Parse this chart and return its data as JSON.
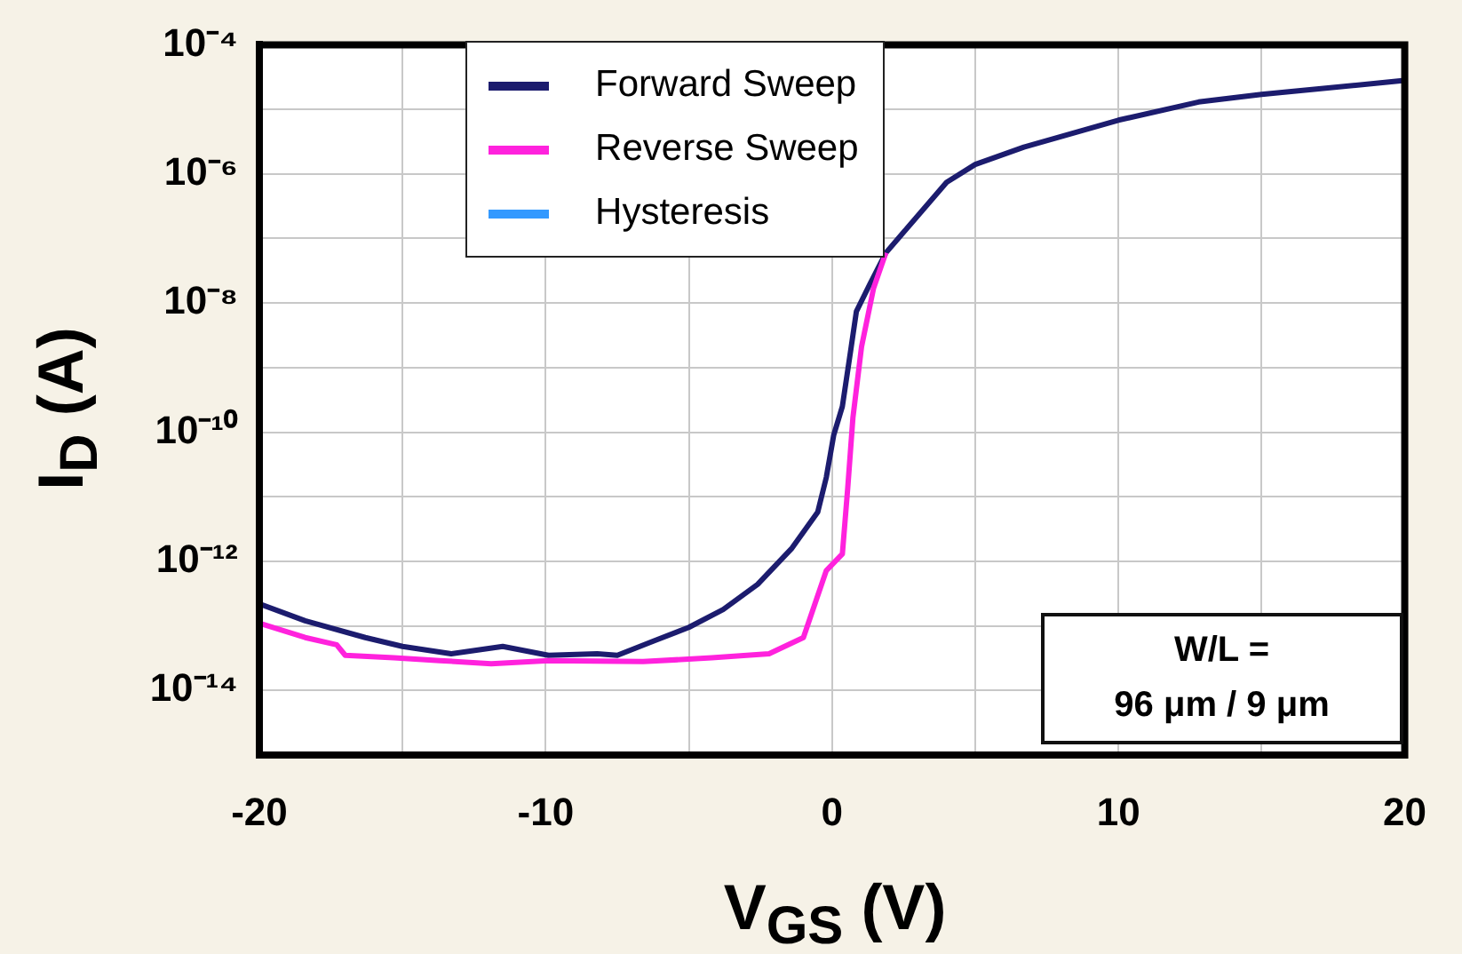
{
  "chart_data": {
    "type": "line",
    "xlabel": "V$_{GS}$ (V)",
    "ylabel": "I$_{D}$ (A)",
    "log": "y",
    "grid": true,
    "legend": "top",
    "marker": "none",
    "line_style": "solid",
    "xlim": [
      -20,
      20
    ],
    "xticks": [
      -20,
      {
        "value": -15,
        "label": null
      },
      -10,
      {
        "value": -5,
        "label": null
      },
      0,
      {
        "value": 5,
        "label": null
      },
      10,
      {
        "value": 15,
        "label": null
      },
      20
    ],
    "ylim": [
      1e-15,
      0.0001
    ],
    "yticks": [
      {
        "value": 1e-15,
        "label": null
      },
      {
        "value": 1e-14,
        "label": "10⁻¹⁴"
      },
      {
        "value": 1e-13,
        "label": null
      },
      {
        "value": 1e-12,
        "label": "10⁻¹²"
      },
      {
        "value": 1e-11,
        "label": null
      },
      {
        "value": 1e-10,
        "label": "10⁻¹⁰"
      },
      {
        "value": 1e-09,
        "label": null
      },
      {
        "value": 1e-08,
        "label": "10⁻⁸"
      },
      {
        "value": 1e-07,
        "label": null
      },
      {
        "value": 1e-06,
        "label": "10⁻⁶"
      },
      {
        "value": 1e-05,
        "label": null
      },
      {
        "value": 0.0001,
        "label": "10⁻⁴"
      }
    ],
    "series": [
      {
        "name": "Reverse Sweep",
        "color": "#ff22dd",
        "x": [
          -20,
          -18.4,
          -17.3,
          -17,
          -15.3,
          -13.7,
          -11.9,
          -9.9,
          -6.6,
          -4.2,
          -2.2,
          -1,
          -0.2,
          0.36,
          0.55,
          0.73,
          1.03,
          1.45,
          1.88
        ],
        "values": [
          1.1e-13,
          6.6e-14,
          5.1e-14,
          3.5e-14,
          3.2e-14,
          2.9e-14,
          2.6e-14,
          2.9e-14,
          2.8e-14,
          3.2e-14,
          3.7e-14,
          6.6e-14,
          7.2e-13,
          1.3e-12,
          1.4e-11,
          1.7e-10,
          2.1e-09,
          1.7e-08,
          6e-08
        ]
      },
      {
        "name": "Forward Sweep",
        "color": "#1c1c6e",
        "x": [
          -20,
          -18.4,
          -16.3,
          -15,
          -13.3,
          -11.5,
          -9.9,
          -8.2,
          -7.5,
          -6.2,
          -5,
          -3.8,
          -2.6,
          -1.4,
          -0.5,
          -0.2,
          0.06,
          0.36,
          0.67,
          0.85,
          1.33,
          1.88,
          4,
          5,
          6.7,
          10,
          12.8,
          15,
          20
        ],
        "values": [
          2.2e-13,
          1.2e-13,
          6.6e-14,
          4.8e-14,
          3.7e-14,
          4.8e-14,
          3.5e-14,
          3.7e-14,
          3.5e-14,
          5.9e-14,
          9.5e-14,
          1.8e-13,
          4.4e-13,
          1.6e-12,
          5.8e-12,
          2e-11,
          9.1e-11,
          2.5e-10,
          2.1e-09,
          7.4e-09,
          2e-08,
          6e-08,
          7.4e-07,
          1.4e-06,
          2.6e-06,
          6.8e-06,
          1.3e-05,
          1.7e-05,
          2.8e-05
        ]
      },
      {
        "name": "Hysteresis",
        "color": "#3399ff"
      }
    ],
    "annotations": [
      "W/L =",
      "96 μm / 9 μm"
    ]
  }
}
